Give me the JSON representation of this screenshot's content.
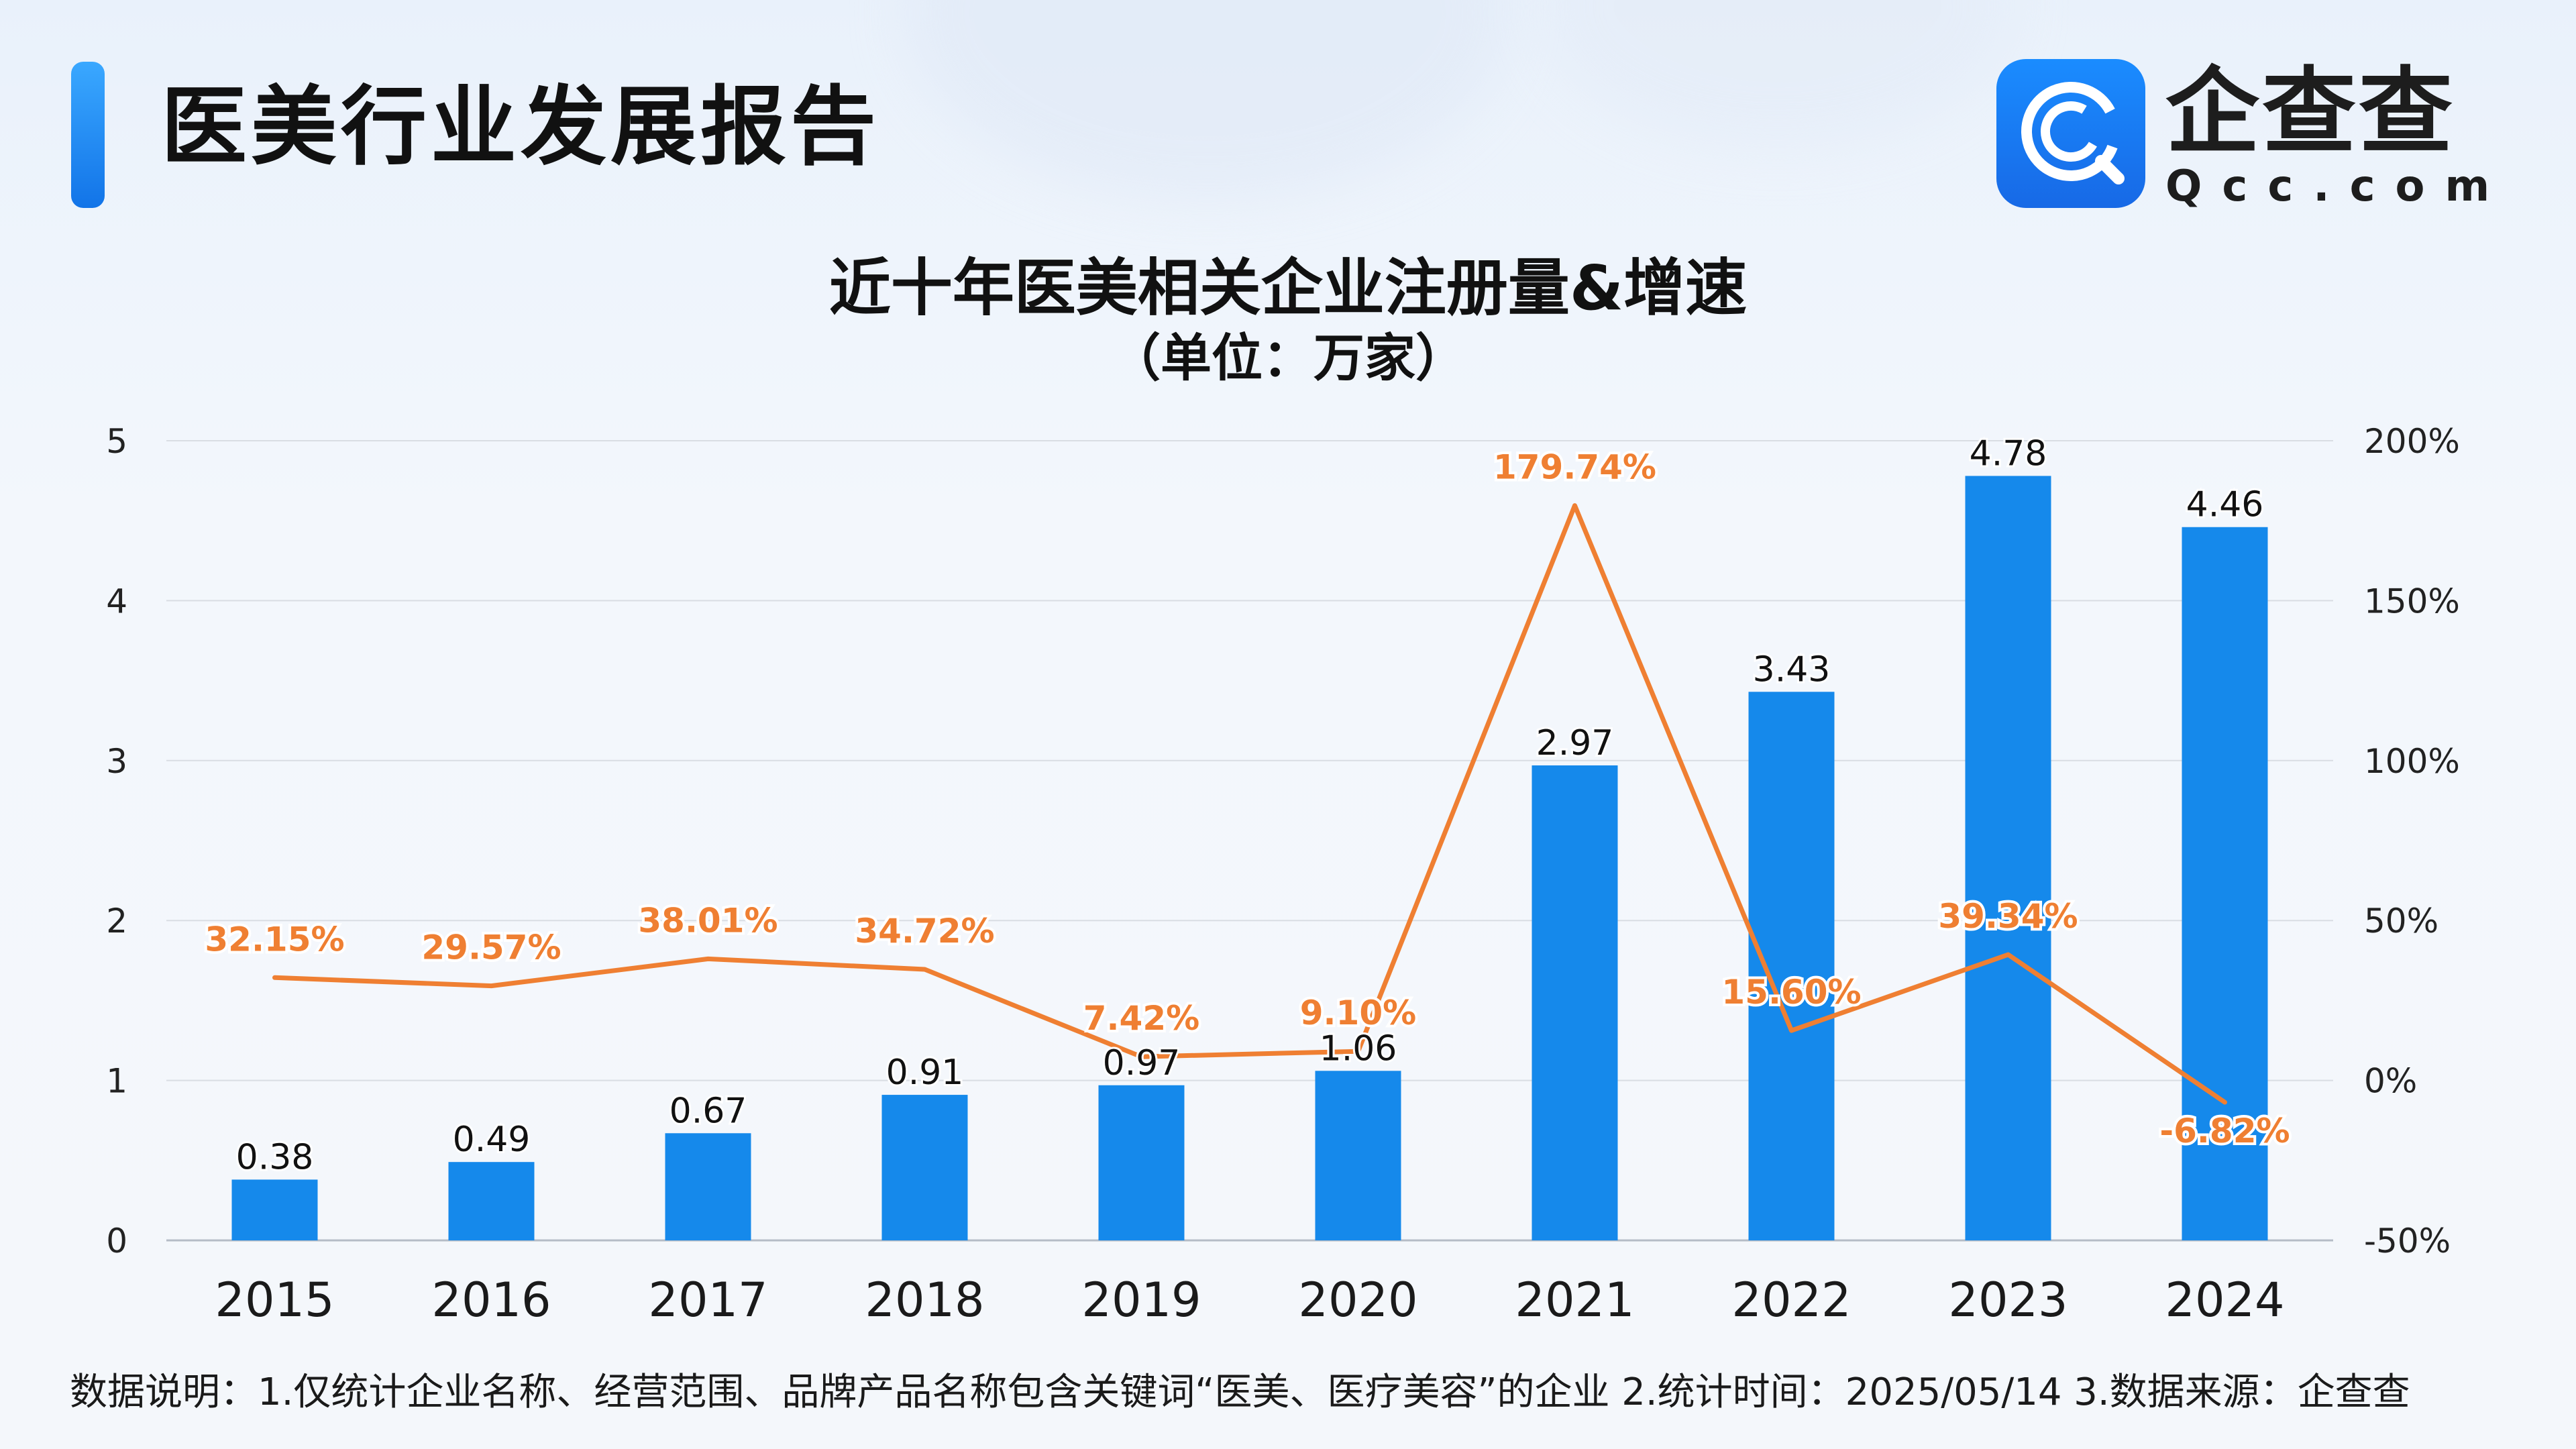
{
  "header": {
    "report_title": "医美行业发展报告",
    "logo_cn": "企查查",
    "logo_en": "Qcc.com"
  },
  "colors": {
    "bar": "#1589eb",
    "line": "#ef7f32",
    "accent": "#1a84f0",
    "grid": "#d9dde3"
  },
  "chart_data": {
    "type": "bar",
    "title": "近十年医美相关企业注册量&增速",
    "subtitle": "（单位：万家）",
    "categories": [
      "2015",
      "2016",
      "2017",
      "2018",
      "2019",
      "2020",
      "2021",
      "2022",
      "2023",
      "2024"
    ],
    "series": [
      {
        "type": "bar",
        "axis": "left",
        "values": [
          0.38,
          0.49,
          0.67,
          0.91,
          0.97,
          1.06,
          2.97,
          3.43,
          4.78,
          4.46
        ],
        "labels": [
          "0.38",
          "0.49",
          "0.67",
          "0.91",
          "0.97",
          "1.06",
          "2.97",
          "3.43",
          "4.78",
          "4.46"
        ]
      },
      {
        "type": "line",
        "axis": "right",
        "values": [
          32.15,
          29.57,
          38.01,
          34.72,
          7.42,
          9.1,
          179.74,
          15.6,
          39.34,
          -6.82
        ],
        "labels": [
          "32.15%",
          "29.57%",
          "38.01%",
          "34.72%",
          "7.42%",
          "9.10%",
          "179.74%",
          "15.60%",
          "39.34%",
          "-6.82%"
        ]
      }
    ],
    "y_left": {
      "ylim": [
        0,
        5
      ],
      "ticks": [
        0,
        1,
        2,
        3,
        4,
        5
      ],
      "tick_labels": [
        "0",
        "1",
        "2",
        "3",
        "4",
        "5"
      ]
    },
    "y_right": {
      "ylim": [
        -50,
        200
      ],
      "ticks": [
        -50,
        0,
        50,
        100,
        150,
        200
      ],
      "tick_labels": [
        "-50%",
        "0%",
        "50%",
        "100%",
        "150%",
        "200%"
      ]
    },
    "grid": true,
    "legend": "none"
  },
  "footnote": "数据说明：1.仅统计企业名称、经营范围、品牌产品名称包含关键词“医美、医疗美容”的企业   2.统计时间：2025/05/14    3.数据来源：企查查"
}
